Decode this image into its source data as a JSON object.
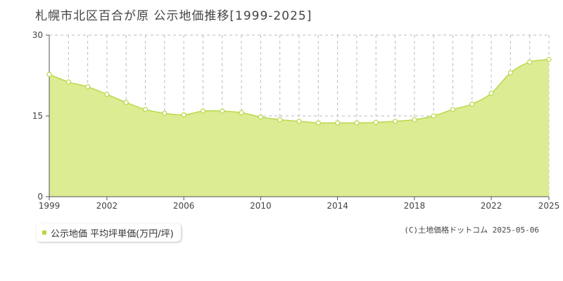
{
  "header": {
    "title": "札幌市北区百合が原 公示地価推移[1999-2025]"
  },
  "legend": {
    "label": "公示地価 平均坪単価(万円/坪)"
  },
  "credit": "(C)土地価格ドットコム 2025-05-06",
  "colors": {
    "fill": "#dcec92",
    "line": "#b8d84a",
    "marker_fill": "#ffffff",
    "grid": "#bbbbbb",
    "axis": "#555555"
  },
  "chart_data": {
    "type": "area",
    "title": "札幌市北区百合が原 公示地価推移[1999-2025]",
    "xlabel": "",
    "ylabel": "",
    "ylim": [
      0,
      30
    ],
    "yticks": [
      0,
      15,
      30
    ],
    "xticks": [
      1999,
      2002,
      2006,
      2010,
      2014,
      2018,
      2022,
      2025
    ],
    "grid": true,
    "legend_position": "bottom-left",
    "series": [
      {
        "name": "公示地価 平均坪単価(万円/坪)",
        "x": [
          1999,
          2000,
          2001,
          2002,
          2003,
          2004,
          2005,
          2006,
          2007,
          2008,
          2009,
          2010,
          2011,
          2012,
          2013,
          2014,
          2015,
          2016,
          2017,
          2018,
          2019,
          2020,
          2021,
          2022,
          2023,
          2024,
          2025
        ],
        "values": [
          22.7,
          21.3,
          20.4,
          19.0,
          17.5,
          16.2,
          15.5,
          15.2,
          15.9,
          15.9,
          15.6,
          14.8,
          14.3,
          14.0,
          13.7,
          13.7,
          13.7,
          13.8,
          14.0,
          14.3,
          15.0,
          16.2,
          17.2,
          19.2,
          23.0,
          25.0,
          25.5
        ]
      }
    ]
  }
}
